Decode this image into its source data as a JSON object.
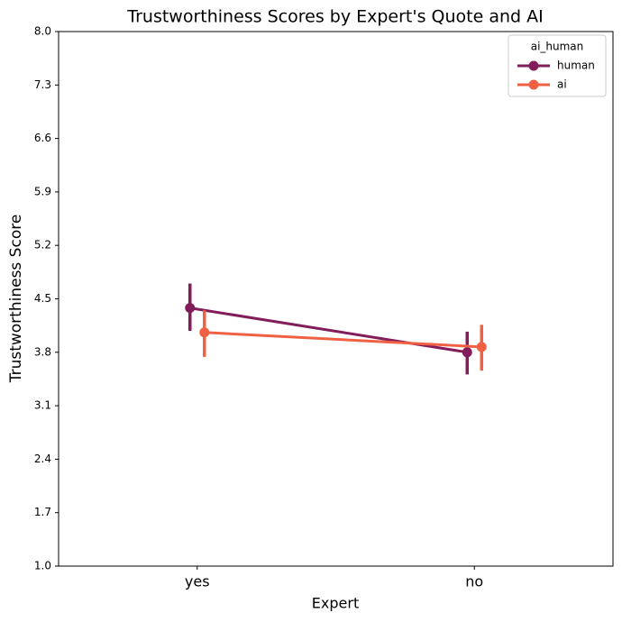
{
  "chart_data": {
    "type": "pointplot",
    "title": "Trustworthiness Scores by Expert's Quote and AI",
    "x_label": "Expert",
    "y_label": "Trustworthiness Score",
    "categories": [
      "yes",
      "no"
    ],
    "legend_title": "ai_human",
    "legend_position": "upper right",
    "series": [
      {
        "name": "human",
        "color": "#821c5b",
        "values": [
          4.38,
          3.8
        ],
        "ci_low": [
          4.08,
          3.51
        ],
        "ci_high": [
          4.7,
          4.07
        ]
      },
      {
        "name": "ai",
        "color": "#f06043",
        "values": [
          4.06,
          3.87
        ],
        "ci_low": [
          3.74,
          3.56
        ],
        "ci_high": [
          4.35,
          4.16
        ]
      }
    ],
    "ylim": [
      1.0,
      8.0
    ],
    "yticks": [
      {
        "value": 1.0,
        "label": "1.0"
      },
      {
        "value": 1.7,
        "label": "1.7"
      },
      {
        "value": 2.4,
        "label": "2.4"
      },
      {
        "value": 3.1,
        "label": "3.1"
      },
      {
        "value": 3.8,
        "label": "3.8"
      },
      {
        "value": 4.5,
        "label": "4.5"
      },
      {
        "value": 5.2,
        "label": "5.2"
      },
      {
        "value": 5.9,
        "label": "5.9"
      },
      {
        "value": 6.6,
        "label": "6.6"
      },
      {
        "value": 7.3,
        "label": "7.3"
      },
      {
        "value": 8.0,
        "label": "8.0"
      }
    ]
  }
}
